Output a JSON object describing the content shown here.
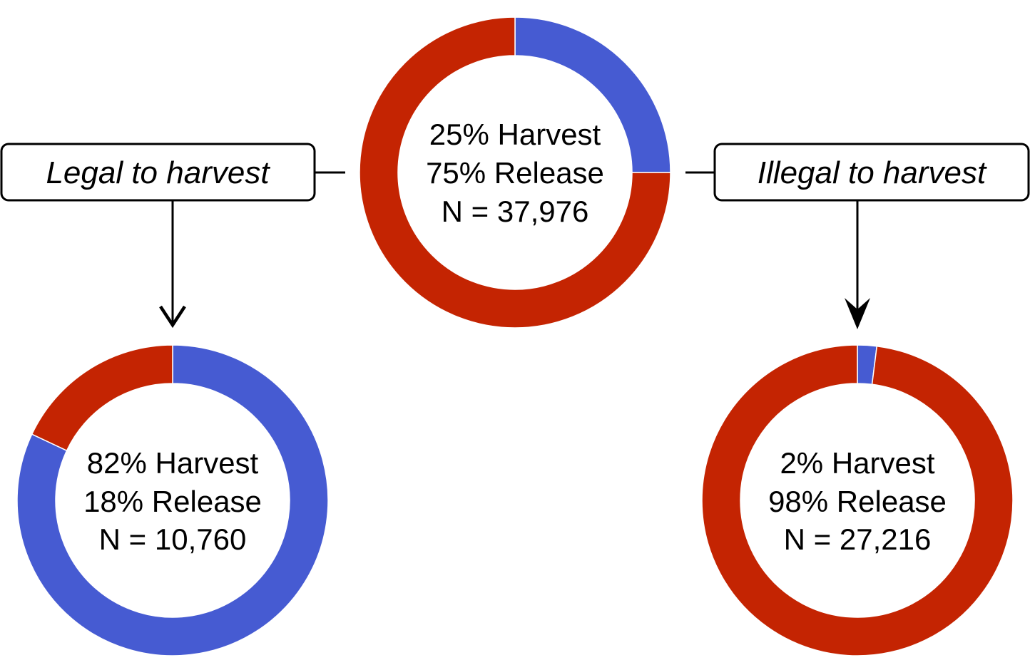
{
  "colors": {
    "harvest": "#465BD2",
    "release": "#C42402",
    "separator": "#ffffff"
  },
  "branches": {
    "legal": {
      "label": "Legal to harvest"
    },
    "illegal": {
      "label": "Illegal to harvest"
    }
  },
  "chart_data": [
    {
      "type": "pie",
      "id": "overall",
      "segments": [
        {
          "name": "Harvest",
          "value": 25
        },
        {
          "name": "Release",
          "value": 75
        }
      ],
      "lines": [
        "25% Harvest",
        "75% Release",
        "N = 37,976"
      ]
    },
    {
      "type": "pie",
      "id": "legal",
      "segments": [
        {
          "name": "Harvest",
          "value": 82
        },
        {
          "name": "Release",
          "value": 18
        }
      ],
      "lines": [
        "82% Harvest",
        "18% Release",
        "N = 10,760"
      ]
    },
    {
      "type": "pie",
      "id": "illegal",
      "segments": [
        {
          "name": "Harvest",
          "value": 2
        },
        {
          "name": "Release",
          "value": 98
        }
      ],
      "lines": [
        "2% Harvest",
        "98% Release",
        "N = 27,216"
      ]
    }
  ]
}
